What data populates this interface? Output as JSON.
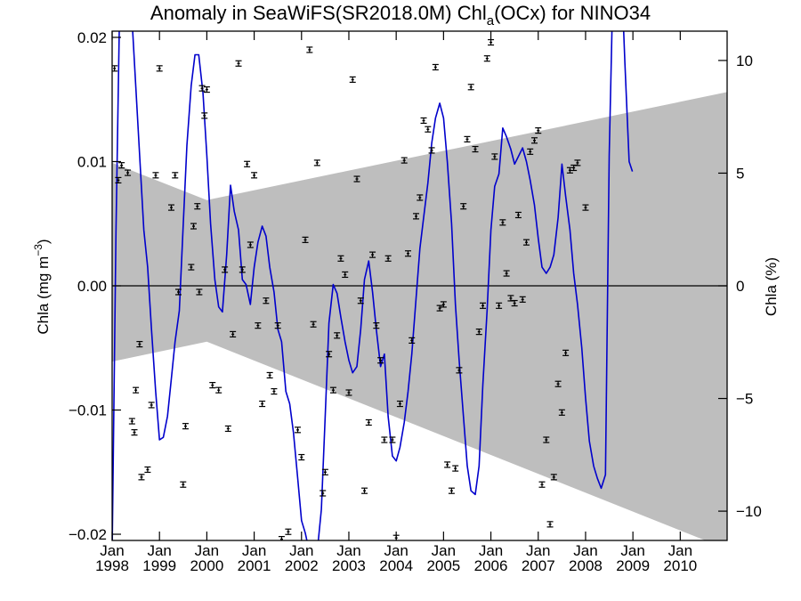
{
  "chart_data": {
    "type": "line",
    "title": "Anomaly in SeaWiFS(SR2018.0M) Chl",
    "title_subscript": "a",
    "title_suffix": "(OCx) for NINO34",
    "ylabel_left": "Chla (mg m",
    "ylabel_left_sup": "−3",
    "ylabel_left_close": ")",
    "ylabel_right": "Chla (%)",
    "xlim": [
      1998.0,
      2010.99
    ],
    "ylim": [
      -0.0205,
      0.0205
    ],
    "y2lim": [
      -11.3,
      11.3
    ],
    "y_ticks": [
      {
        "value": -0.02,
        "label": "−0.02"
      },
      {
        "value": -0.01,
        "label": "−0.01"
      },
      {
        "value": 0.0,
        "label": "0.00"
      },
      {
        "value": 0.01,
        "label": "0.01"
      },
      {
        "value": 0.02,
        "label": "0.02"
      }
    ],
    "y2_ticks": [
      {
        "value": -10,
        "label": "−10"
      },
      {
        "value": -5,
        "label": "−5"
      },
      {
        "value": 0,
        "label": "0"
      },
      {
        "value": 5,
        "label": "5"
      },
      {
        "value": 10,
        "label": "10"
      }
    ],
    "x_ticks": [
      {
        "value": 1998.0,
        "month": "Jan",
        "year": "1998"
      },
      {
        "value": 1999.0,
        "month": "Jan",
        "year": "1999"
      },
      {
        "value": 2000.0,
        "month": "Jan",
        "year": "2000"
      },
      {
        "value": 2001.0,
        "month": "Jan",
        "year": "2001"
      },
      {
        "value": 2002.0,
        "month": "Jan",
        "year": "2002"
      },
      {
        "value": 2003.0,
        "month": "Jan",
        "year": "2003"
      },
      {
        "value": 2004.0,
        "month": "Jan",
        "year": "2004"
      },
      {
        "value": 2005.0,
        "month": "Jan",
        "year": "2005"
      },
      {
        "value": 2006.0,
        "month": "Jan",
        "year": "2006"
      },
      {
        "value": 2007.0,
        "month": "Jan",
        "year": "2007"
      },
      {
        "value": 2008.0,
        "month": "Jan",
        "year": "2008"
      },
      {
        "value": 2009.0,
        "month": "Jan",
        "year": "2009"
      },
      {
        "value": 2010.0,
        "month": "Jan",
        "year": "2010"
      }
    ],
    "shaded_band": {
      "color": "#bebebe",
      "upper": [
        [
          1998.0,
          0.0099
        ],
        [
          2000.0,
          0.0069
        ],
        [
          2010.99,
          0.0156
        ]
      ],
      "lower": [
        [
          1998.0,
          -0.0061
        ],
        [
          2000.0,
          -0.0045
        ],
        [
          2010.99,
          -0.0212
        ]
      ]
    },
    "zero_line": true,
    "series": [
      {
        "color": "#0000cc",
        "style": "line",
        "points": [
          [
            1998.0,
            -0.0215
          ],
          [
            1998.08,
            0.0043
          ],
          [
            1998.17,
            0.025
          ],
          [
            1998.25,
            0.028
          ],
          [
            1998.33,
            0.026
          ],
          [
            1998.42,
            0.0215
          ],
          [
            1998.5,
            0.016
          ],
          [
            1998.58,
            0.0105
          ],
          [
            1998.67,
            0.0045
          ],
          [
            1998.75,
            0.0015
          ],
          [
            1998.83,
            -0.0035
          ],
          [
            1998.92,
            -0.0085
          ],
          [
            1999.0,
            -0.0124
          ],
          [
            1999.08,
            -0.0122
          ],
          [
            1999.17,
            -0.0105
          ],
          [
            1999.25,
            -0.0075
          ],
          [
            1999.33,
            -0.0045
          ],
          [
            1999.42,
            -0.002
          ],
          [
            1999.5,
            0.0048
          ],
          [
            1999.58,
            0.0113
          ],
          [
            1999.67,
            0.0161
          ],
          [
            1999.75,
            0.0186
          ],
          [
            1999.83,
            0.0186
          ],
          [
            1999.92,
            0.0155
          ],
          [
            2000.0,
            0.0105
          ],
          [
            2000.08,
            0.005
          ],
          [
            2000.17,
            0.0005
          ],
          [
            2000.25,
            -0.0017
          ],
          [
            2000.33,
            -0.0021
          ],
          [
            2000.42,
            0.0025
          ],
          [
            2000.5,
            0.0081
          ],
          [
            2000.58,
            0.006
          ],
          [
            2000.67,
            0.0045
          ],
          [
            2000.75,
            0.0005
          ],
          [
            2000.83,
            0.0001
          ],
          [
            2000.92,
            -0.0015
          ],
          [
            2001.0,
            0.0015
          ],
          [
            2001.08,
            0.0035
          ],
          [
            2001.17,
            0.0048
          ],
          [
            2001.25,
            0.004
          ],
          [
            2001.33,
            0.0015
          ],
          [
            2001.42,
            -0.0005
          ],
          [
            2001.5,
            -0.0035
          ],
          [
            2001.58,
            -0.0045
          ],
          [
            2001.67,
            -0.0085
          ],
          [
            2001.75,
            -0.0095
          ],
          [
            2001.83,
            -0.0118
          ],
          [
            2001.92,
            -0.0155
          ],
          [
            2002.0,
            -0.0189
          ],
          [
            2002.08,
            -0.0199
          ],
          [
            2002.17,
            -0.0215
          ],
          [
            2002.25,
            -0.0215
          ],
          [
            2002.33,
            -0.0215
          ],
          [
            2002.42,
            -0.018
          ],
          [
            2002.5,
            -0.0105
          ],
          [
            2002.58,
            -0.003
          ],
          [
            2002.67,
            0.0001
          ],
          [
            2002.75,
            -0.0006
          ],
          [
            2002.83,
            -0.0025
          ],
          [
            2002.92,
            -0.0045
          ],
          [
            2003.0,
            -0.006
          ],
          [
            2003.08,
            -0.007
          ],
          [
            2003.17,
            -0.0065
          ],
          [
            2003.25,
            -0.0035
          ],
          [
            2003.33,
            0.0005
          ],
          [
            2003.42,
            0.002
          ],
          [
            2003.5,
            -0.0005
          ],
          [
            2003.58,
            -0.0035
          ],
          [
            2003.67,
            -0.0065
          ],
          [
            2003.75,
            -0.0055
          ],
          [
            2003.83,
            -0.0105
          ],
          [
            2003.92,
            -0.0137
          ],
          [
            2004.0,
            -0.0141
          ],
          [
            2004.08,
            -0.013
          ],
          [
            2004.17,
            -0.011
          ],
          [
            2004.25,
            -0.0085
          ],
          [
            2004.33,
            -0.0055
          ],
          [
            2004.42,
            -0.001
          ],
          [
            2004.5,
            0.003
          ],
          [
            2004.58,
            0.0055
          ],
          [
            2004.67,
            0.0083
          ],
          [
            2004.75,
            0.0115
          ],
          [
            2004.83,
            0.0135
          ],
          [
            2004.92,
            0.0147
          ],
          [
            2005.0,
            0.0135
          ],
          [
            2005.08,
            0.01
          ],
          [
            2005.17,
            0.005
          ],
          [
            2005.25,
            -0.0015
          ],
          [
            2005.33,
            -0.006
          ],
          [
            2005.42,
            -0.0105
          ],
          [
            2005.5,
            -0.0145
          ],
          [
            2005.58,
            -0.0165
          ],
          [
            2005.67,
            -0.0168
          ],
          [
            2005.75,
            -0.0145
          ],
          [
            2005.83,
            -0.008
          ],
          [
            2005.92,
            -0.002
          ],
          [
            2006.0,
            0.0045
          ],
          [
            2006.08,
            0.008
          ],
          [
            2006.17,
            0.009
          ],
          [
            2006.25,
            0.0127
          ],
          [
            2006.33,
            0.012
          ],
          [
            2006.42,
            0.011
          ],
          [
            2006.5,
            0.0098
          ],
          [
            2006.58,
            0.0104
          ],
          [
            2006.67,
            0.0111
          ],
          [
            2006.75,
            0.01
          ],
          [
            2006.83,
            0.0085
          ],
          [
            2006.92,
            0.0065
          ],
          [
            2007.0,
            0.0038
          ],
          [
            2007.08,
            0.0015
          ],
          [
            2007.17,
            0.001
          ],
          [
            2007.25,
            0.0015
          ],
          [
            2007.33,
            0.0025
          ],
          [
            2007.42,
            0.0055
          ],
          [
            2007.5,
            0.0098
          ],
          [
            2007.58,
            0.0072
          ],
          [
            2007.67,
            0.0045
          ],
          [
            2007.75,
            0.001
          ],
          [
            2007.83,
            -0.0015
          ],
          [
            2007.92,
            -0.005
          ],
          [
            2008.0,
            -0.009
          ],
          [
            2008.08,
            -0.0125
          ],
          [
            2008.17,
            -0.0145
          ],
          [
            2008.25,
            -0.0155
          ],
          [
            2008.33,
            -0.0163
          ],
          [
            2008.42,
            -0.0152
          ],
          [
            2008.5,
            0.0105
          ],
          [
            2008.58,
            0.0245
          ],
          [
            2008.67,
            0.0295
          ],
          [
            2008.75,
            0.026
          ],
          [
            2008.83,
            0.018
          ],
          [
            2008.92,
            0.01
          ],
          [
            2008.99,
            0.0092
          ]
        ]
      },
      {
        "color": "#000000",
        "style": "errorbar",
        "points": [
          [
            1998.05,
            0.0175
          ],
          [
            1998.13,
            0.0085
          ],
          [
            1998.2,
            0.0097
          ],
          [
            1998.33,
            0.0091
          ],
          [
            1998.42,
            -0.0109
          ],
          [
            1998.47,
            -0.0118
          ],
          [
            1998.5,
            -0.0084
          ],
          [
            1998.58,
            -0.0047
          ],
          [
            1998.62,
            -0.0154
          ],
          [
            1998.75,
            -0.0148
          ],
          [
            1998.83,
            -0.0096
          ],
          [
            1998.92,
            0.0089
          ],
          [
            1999.0,
            0.0175
          ],
          [
            1999.25,
            0.0063
          ],
          [
            1999.33,
            0.0089
          ],
          [
            1999.4,
            -0.0005
          ],
          [
            1999.5,
            -0.016
          ],
          [
            1999.55,
            -0.0113
          ],
          [
            1999.67,
            0.0015
          ],
          [
            1999.72,
            0.0048
          ],
          [
            1999.8,
            0.0064
          ],
          [
            1999.84,
            -0.0005
          ],
          [
            1999.9,
            0.0159
          ],
          [
            1999.95,
            0.0137
          ],
          [
            2000.0,
            0.0158
          ],
          [
            2000.12,
            -0.008
          ],
          [
            2000.25,
            -0.0084
          ],
          [
            2000.38,
            0.0013
          ],
          [
            2000.45,
            -0.0115
          ],
          [
            2000.55,
            -0.0039
          ],
          [
            2000.67,
            0.0179
          ],
          [
            2000.75,
            0.0013
          ],
          [
            2000.85,
            0.0098
          ],
          [
            2000.92,
            0.0033
          ],
          [
            2001.0,
            0.0089
          ],
          [
            2001.08,
            -0.0032
          ],
          [
            2001.17,
            -0.0095
          ],
          [
            2001.25,
            -0.0012
          ],
          [
            2001.33,
            -0.0072
          ],
          [
            2001.42,
            -0.0085
          ],
          [
            2001.5,
            -0.0032
          ],
          [
            2001.58,
            -0.0204
          ],
          [
            2001.72,
            -0.0198
          ],
          [
            2001.92,
            -0.0116
          ],
          [
            2002.0,
            -0.0138
          ],
          [
            2002.08,
            0.0037
          ],
          [
            2002.17,
            0.019
          ],
          [
            2002.25,
            -0.0031
          ],
          [
            2002.33,
            0.0099
          ],
          [
            2002.45,
            -0.0167
          ],
          [
            2002.5,
            -0.015
          ],
          [
            2002.58,
            -0.0055
          ],
          [
            2002.67,
            -0.0084
          ],
          [
            2002.75,
            -0.004
          ],
          [
            2002.83,
            0.0022
          ],
          [
            2002.92,
            0.0009
          ],
          [
            2003.0,
            -0.0086
          ],
          [
            2003.08,
            0.0166
          ],
          [
            2003.17,
            0.0086
          ],
          [
            2003.25,
            -0.0012
          ],
          [
            2003.33,
            -0.0165
          ],
          [
            2003.42,
            -0.011
          ],
          [
            2003.5,
            0.0025
          ],
          [
            2003.58,
            -0.0032
          ],
          [
            2003.67,
            -0.006
          ],
          [
            2003.75,
            -0.0124
          ],
          [
            2003.83,
            0.0022
          ],
          [
            2003.92,
            -0.0124
          ],
          [
            2004.0,
            -0.0203
          ],
          [
            2004.08,
            -0.0095
          ],
          [
            2004.17,
            0.0101
          ],
          [
            2004.25,
            0.0026
          ],
          [
            2004.33,
            -0.0044
          ],
          [
            2004.42,
            0.0056
          ],
          [
            2004.5,
            0.0071
          ],
          [
            2004.58,
            0.0133
          ],
          [
            2004.67,
            0.0126
          ],
          [
            2004.75,
            0.0109
          ],
          [
            2004.83,
            0.0176
          ],
          [
            2004.92,
            -0.0018
          ],
          [
            2005.0,
            -0.0015
          ],
          [
            2005.08,
            -0.0144
          ],
          [
            2005.17,
            -0.0165
          ],
          [
            2005.25,
            -0.0147
          ],
          [
            2005.33,
            -0.0068
          ],
          [
            2005.42,
            0.0064
          ],
          [
            2005.5,
            0.0118
          ],
          [
            2005.58,
            0.016
          ],
          [
            2005.67,
            0.011
          ],
          [
            2005.75,
            -0.0037
          ],
          [
            2005.83,
            -0.0016
          ],
          [
            2005.92,
            0.0183
          ],
          [
            2006.0,
            0.0196
          ],
          [
            2006.08,
            0.0104
          ],
          [
            2006.17,
            -0.0016
          ],
          [
            2006.25,
            0.0051
          ],
          [
            2006.33,
            0.001
          ],
          [
            2006.42,
            -0.001
          ],
          [
            2006.5,
            -0.0014
          ],
          [
            2006.58,
            0.0057
          ],
          [
            2006.67,
            -0.0011
          ],
          [
            2006.75,
            0.0035
          ],
          [
            2006.83,
            0.0108
          ],
          [
            2006.92,
            0.0117
          ],
          [
            2007.0,
            0.0125
          ],
          [
            2007.08,
            -0.016
          ],
          [
            2007.17,
            -0.0124
          ],
          [
            2007.25,
            -0.0192
          ],
          [
            2007.33,
            -0.0154
          ],
          [
            2007.42,
            -0.0079
          ],
          [
            2007.5,
            -0.0102
          ],
          [
            2007.58,
            -0.0054
          ],
          [
            2007.67,
            0.0093
          ],
          [
            2007.75,
            0.0095
          ],
          [
            2007.83,
            0.0099
          ],
          [
            2008.0,
            0.0063
          ]
        ]
      }
    ]
  }
}
